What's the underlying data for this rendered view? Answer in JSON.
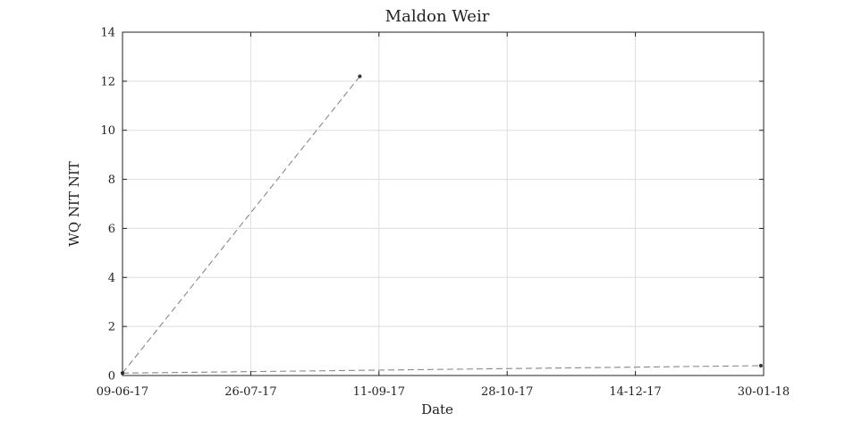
{
  "chart_data": {
    "type": "scatter",
    "title": "Maldon Weir",
    "xlabel": "Date",
    "ylabel": "WQ NIT NIT",
    "x_axis_type": "date",
    "x_tick_format": "DD-MM-YY",
    "x_ticks": [
      "09-06-17",
      "26-07-17",
      "11-09-17",
      "28-10-17",
      "14-12-17",
      "30-01-18"
    ],
    "xlim": [
      "2017-06-09",
      "2018-01-30"
    ],
    "ylim": [
      0,
      14
    ],
    "y_ticks": [
      0,
      2,
      4,
      6,
      8,
      10,
      12,
      14
    ],
    "grid": true,
    "legend": "none",
    "line_style": "dashed",
    "line_color": "#888888",
    "marker_color": "#333333",
    "series": [
      {
        "points": [
          {
            "x": "2017-06-09",
            "y": 0.1
          },
          {
            "x": "2017-09-04",
            "y": 12.2
          }
        ]
      },
      {
        "points": [
          {
            "x": "2017-06-09",
            "y": 0.1
          },
          {
            "x": "2018-01-29",
            "y": 0.4
          }
        ]
      }
    ]
  }
}
